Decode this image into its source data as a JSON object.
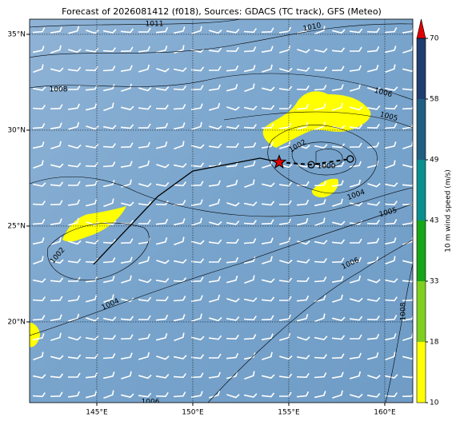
{
  "chart_data": {
    "type": "map",
    "title": "Forecast of 2026081412 (f018), Sources: GDACS (TC track), GFS (Meteo)",
    "xlim": [
      141.5,
      161.46
    ],
    "ylim": [
      15.79,
      35.79
    ],
    "xticks": [
      {
        "value": 145,
        "label": "145°E"
      },
      {
        "value": 150,
        "label": "150°E"
      },
      {
        "value": 155,
        "label": "155°E"
      },
      {
        "value": 160,
        "label": "160°E"
      }
    ],
    "yticks": [
      {
        "value": 20,
        "label": "20°N"
      },
      {
        "value": 25,
        "label": "25°N"
      },
      {
        "value": 30,
        "label": "30°N"
      },
      {
        "value": 35,
        "label": "35°N"
      }
    ],
    "grid": true,
    "contour_labels": [
      1011,
      1010,
      1008,
      1006,
      1005,
      1002,
      1000,
      1004,
      1005,
      1006,
      1008,
      1004,
      1002,
      1006
    ],
    "track": {
      "color": "#000000",
      "lon": [
        144.83,
        148.17,
        150.0,
        153.5,
        154.5
      ],
      "lat": [
        23.0,
        26.54,
        27.87,
        28.54,
        28.33
      ]
    },
    "current_position": {
      "color": "#e00000",
      "lon": 154.5,
      "lat": 28.33
    },
    "forecast_track": {
      "color": "#000000",
      "lon": [
        154.5,
        156.17,
        158.2
      ],
      "lat": [
        28.33,
        28.2,
        28.5
      ]
    },
    "colorbar": {
      "label": "10 m wind speed (m/s)",
      "ticks": [
        10,
        18,
        33,
        43,
        49,
        58,
        70
      ],
      "colors": [
        "#ffff00",
        "#7fcf1f",
        "#17a617",
        "#0a8f8f",
        "#1f5f82",
        "#1f3d6e"
      ],
      "extend_color": "#e00000"
    }
  }
}
